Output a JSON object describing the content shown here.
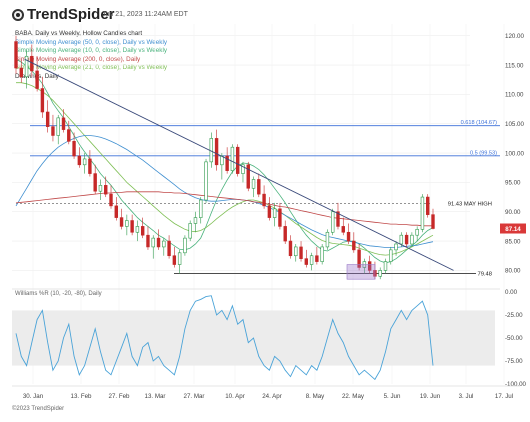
{
  "header": {
    "logo_text": "TrendSpider",
    "timestamp": "Jun 21, 2023 11:24AM EDT"
  },
  "legend": {
    "title": "BABA, Daily vs Weekly, Hollow Candles chart",
    "items": [
      {
        "label": "Simple Moving Average (50, 0, close), Daily vs Weekly",
        "color": "#3f8fd0"
      },
      {
        "label": "Simple Moving Average (10, 0, close), Daily vs Weekly",
        "color": "#49b27c"
      },
      {
        "label": "Simple Moving Average (200, 0, close), Daily",
        "color": "#c04848"
      },
      {
        "label": "Simple Moving Average (21, 0, close), Daily vs Weekly",
        "color": "#7fbf55"
      },
      {
        "label": "Drawings, Daily",
        "color": "#333333"
      }
    ]
  },
  "footer": {
    "copyright": "©2023 TrendSpider"
  },
  "chart_data": {
    "type": "candlestick",
    "symbol": "BABA",
    "x_ticks": [
      "30. Jan",
      "13. Feb",
      "27. Feb",
      "13. Mar",
      "27. Mar",
      "10. Apr",
      "24. Apr",
      "8. May",
      "22. May",
      "5. Jun",
      "19. Jun",
      "3. Jul",
      "17. Jul"
    ],
    "y_ticks": [
      80.0,
      85.0,
      90.0,
      95.0,
      100.0,
      105.0,
      110.0,
      115.0,
      120.0
    ],
    "ylim": [
      77,
      122
    ],
    "last_price_label": "87.14",
    "last_price": 87.14,
    "horizontal_levels": [
      {
        "label": "0.618 (104.67)",
        "value": 104.67,
        "color": "#3a6fd8"
      },
      {
        "label": "0.5 (99.53)",
        "value": 99.53,
        "color": "#3a6fd8"
      },
      {
        "label": "91.43 MAY HIGH",
        "value": 91.43,
        "color": "#333333"
      },
      {
        "label": "79.48",
        "value": 79.48,
        "color": "#333333"
      }
    ],
    "trendline": {
      "from": {
        "date": "2023-01-27",
        "value": 116
      },
      "to": {
        "date": "2023-06-29",
        "value": 80
      }
    },
    "support_box": {
      "from": "2023-05-22",
      "to": "2023-06-01",
      "low": 78.5,
      "high": 81
    },
    "candles": [
      [
        119.0,
        120.0,
        113.5,
        114.5
      ],
      [
        114.5,
        116.0,
        112.0,
        113.0
      ],
      [
        113.0,
        117.5,
        111.0,
        116.5
      ],
      [
        116.5,
        118.5,
        113.0,
        114.0
      ],
      [
        114.0,
        116.5,
        110.5,
        111.0
      ],
      [
        111.0,
        113.0,
        106.0,
        107.0
      ],
      [
        107.0,
        109.0,
        103.5,
        104.5
      ],
      [
        104.5,
        106.5,
        102.0,
        103.0
      ],
      [
        103.0,
        106.5,
        101.5,
        106.0
      ],
      [
        106.0,
        107.5,
        103.5,
        104.0
      ],
      [
        104.0,
        105.5,
        101.5,
        102.0
      ],
      [
        102.0,
        103.5,
        99.0,
        99.5
      ],
      [
        99.5,
        101.0,
        97.5,
        98.0
      ],
      [
        98.0,
        100.0,
        96.5,
        99.0
      ],
      [
        99.0,
        100.5,
        96.0,
        96.5
      ],
      [
        96.5,
        98.0,
        93.0,
        93.5
      ],
      [
        93.5,
        95.5,
        92.0,
        94.5
      ],
      [
        94.5,
        96.0,
        92.5,
        93.0
      ],
      [
        93.0,
        94.5,
        90.5,
        91.0
      ],
      [
        91.0,
        92.5,
        88.5,
        89.0
      ],
      [
        89.0,
        90.5,
        87.0,
        87.5
      ],
      [
        87.5,
        89.5,
        86.0,
        88.5
      ],
      [
        88.5,
        89.5,
        86.0,
        86.5
      ],
      [
        86.5,
        88.5,
        85.0,
        87.5
      ],
      [
        87.5,
        89.0,
        85.5,
        86.0
      ],
      [
        86.0,
        87.5,
        83.5,
        84.0
      ],
      [
        84.0,
        86.0,
        82.0,
        85.5
      ],
      [
        85.5,
        87.0,
        83.5,
        84.0
      ],
      [
        84.0,
        85.5,
        82.5,
        85.0
      ],
      [
        85.0,
        86.0,
        82.0,
        82.5
      ],
      [
        82.5,
        84.0,
        80.5,
        81.0
      ],
      [
        81.0,
        83.5,
        79.5,
        83.0
      ],
      [
        83.0,
        86.0,
        82.5,
        85.5
      ],
      [
        85.5,
        88.5,
        85.0,
        88.0
      ],
      [
        88.0,
        90.0,
        86.5,
        89.0
      ],
      [
        89.0,
        92.5,
        88.0,
        92.0
      ],
      [
        92.0,
        99.0,
        91.5,
        98.5
      ],
      [
        98.5,
        103.5,
        97.5,
        102.5
      ],
      [
        102.5,
        104.0,
        97.0,
        98.0
      ],
      [
        98.0,
        100.0,
        95.5,
        99.5
      ],
      [
        99.5,
        101.0,
        96.5,
        97.0
      ],
      [
        97.0,
        101.5,
        96.5,
        101.0
      ],
      [
        101.0,
        101.5,
        96.0,
        96.5
      ],
      [
        96.5,
        98.5,
        95.0,
        98.0
      ],
      [
        98.0,
        98.5,
        93.5,
        94.0
      ],
      [
        94.0,
        96.0,
        92.5,
        95.5
      ],
      [
        95.5,
        96.5,
        92.5,
        93.0
      ],
      [
        93.0,
        94.5,
        90.5,
        91.0
      ],
      [
        91.0,
        92.5,
        88.5,
        89.0
      ],
      [
        89.0,
        91.5,
        87.5,
        90.5
      ],
      [
        90.5,
        91.5,
        87.0,
        87.5
      ],
      [
        87.5,
        88.5,
        84.5,
        85.0
      ],
      [
        85.0,
        86.0,
        82.0,
        82.5
      ],
      [
        82.5,
        84.5,
        81.5,
        84.0
      ],
      [
        84.0,
        85.0,
        81.5,
        82.0
      ],
      [
        82.0,
        83.5,
        80.5,
        81.0
      ],
      [
        81.0,
        83.0,
        80.0,
        82.5
      ],
      [
        82.5,
        84.0,
        81.0,
        81.5
      ],
      [
        81.5,
        84.5,
        81.0,
        84.0
      ],
      [
        84.0,
        87.0,
        83.5,
        86.5
      ],
      [
        86.5,
        90.5,
        86.0,
        90.0
      ],
      [
        90.0,
        91.5,
        87.0,
        87.5
      ],
      [
        87.5,
        89.0,
        86.0,
        86.5
      ],
      [
        86.5,
        88.0,
        84.5,
        85.0
      ],
      [
        85.0,
        86.5,
        83.0,
        83.5
      ],
      [
        83.5,
        84.5,
        80.0,
        80.5
      ],
      [
        80.5,
        82.0,
        79.5,
        81.5
      ],
      [
        81.5,
        82.5,
        79.5,
        80.0
      ],
      [
        80.0,
        81.5,
        78.5,
        79.0
      ],
      [
        79.0,
        80.5,
        78.5,
        80.0
      ],
      [
        80.0,
        82.0,
        79.5,
        81.5
      ],
      [
        81.5,
        84.0,
        81.0,
        83.5
      ],
      [
        83.5,
        85.0,
        82.5,
        84.5
      ],
      [
        84.5,
        86.5,
        84.0,
        86.0
      ],
      [
        86.0,
        86.5,
        84.0,
        84.5
      ],
      [
        84.5,
        86.5,
        84.0,
        86.0
      ],
      [
        86.0,
        87.5,
        85.0,
        87.0
      ],
      [
        87.0,
        93.0,
        86.5,
        92.5
      ],
      [
        92.5,
        93.0,
        89.0,
        89.5
      ],
      [
        89.5,
        90.5,
        87.0,
        87.14
      ]
    ],
    "sma_lines": [
      {
        "name": "Simple Moving Average (10, 0, close), Daily vs Weekly",
        "color": "#49b27c",
        "values": [
          116,
          115.5,
          114.8,
          114,
          113,
          111.8,
          110.2,
          108.5,
          107.2,
          106,
          104.5,
          103,
          101.5,
          100.2,
          99,
          97.8,
          96.5,
          95.5,
          94.5,
          93.3,
          92,
          91,
          90,
          89,
          88.2,
          87.5,
          86.8,
          86,
          85.5,
          84.8,
          84.2,
          83.6,
          83.5,
          83.8,
          84.5,
          85.5,
          87.5,
          89.8,
          92,
          93.8,
          95.4,
          96.8,
          97.8,
          98.3,
          98.2,
          97.8,
          97.2,
          96.3,
          95.2,
          94,
          92.8,
          91.5,
          90,
          88.6,
          87.2,
          86,
          85,
          84.2,
          83.5,
          83.3,
          83.8,
          84.3,
          84.8,
          85,
          85,
          84.5,
          83.8,
          83,
          82.2,
          81.6,
          81.3,
          81.5,
          82,
          82.7,
          83.5,
          84.2,
          85,
          86,
          86.8,
          87.3
        ]
      },
      {
        "name": "Simple Moving Average (21, 0, close), Daily vs Weekly",
        "color": "#7fbf55",
        "values": [
          112,
          112,
          111.8,
          111.5,
          111,
          110.5,
          109.8,
          109,
          108,
          107,
          106,
          105,
          104,
          103,
          102,
          101,
          100,
          99,
          98,
          97,
          96,
          95,
          94.2,
          93.4,
          92.6,
          91.8,
          91,
          90.2,
          89.4,
          88.7,
          88,
          87.5,
          87,
          86.7,
          86.6,
          86.8,
          87.3,
          88,
          88.8,
          89.5,
          90.2,
          90.8,
          91.3,
          91.7,
          92,
          92,
          91.8,
          91.5,
          91.1,
          90.6,
          90,
          89.4,
          88.7,
          88,
          87.4,
          86.8,
          86.2,
          85.6,
          85.1,
          84.8,
          84.6,
          84.5,
          84.4,
          84.3,
          84.1,
          83.8,
          83.5,
          83.2,
          82.9,
          82.7,
          82.6,
          82.7,
          82.9,
          83.2,
          83.6,
          84,
          84.5,
          85,
          85.5,
          86
        ]
      },
      {
        "name": "Simple Moving Average (50, 0, close), Daily vs Weekly",
        "color": "#3f8fd0",
        "values": [
          91,
          92.5,
          94,
          95.5,
          97,
          98.2,
          99.3,
          100.2,
          101,
          101.6,
          102.1,
          102.5,
          102.8,
          103,
          103,
          102.9,
          102.7,
          102.4,
          102,
          101.6,
          101.1,
          100.6,
          100,
          99.4,
          98.8,
          98.1,
          97.4,
          96.7,
          96,
          95.3,
          94.6,
          93.9,
          93.3,
          92.8,
          92.4,
          92.1,
          91.9,
          91.8,
          91.8,
          91.9,
          92,
          92.1,
          92.1,
          92,
          91.9,
          91.7,
          91.4,
          91.1,
          90.7,
          90.3,
          89.9,
          89.4,
          88.9,
          88.4,
          87.9,
          87.4,
          86.9,
          86.5,
          86.1,
          85.8,
          85.6,
          85.4,
          85.2,
          85,
          84.8,
          84.6,
          84.4,
          84.2,
          84.1,
          84,
          83.9,
          83.9,
          83.9,
          84,
          84.1,
          84.2,
          84.3,
          84.5,
          84.7,
          84.9
        ]
      },
      {
        "name": "Simple Moving Average (200, 0, close), Daily",
        "color": "#c04848",
        "values": [
          91.5,
          91.6,
          91.7,
          91.8,
          91.9,
          92,
          92.1,
          92.2,
          92.3,
          92.4,
          92.5,
          92.6,
          92.7,
          92.8,
          92.9,
          93,
          93.1,
          93.2,
          93.2,
          93.3,
          93.3,
          93.4,
          93.4,
          93.4,
          93.4,
          93.4,
          93.4,
          93.4,
          93.3,
          93.3,
          93.2,
          93.2,
          93.1,
          93,
          92.9,
          92.8,
          92.7,
          92.6,
          92.5,
          92.4,
          92.3,
          92.2,
          92.1,
          92,
          91.9,
          91.7,
          91.6,
          91.4,
          91.3,
          91.1,
          90.9,
          90.8,
          90.6,
          90.4,
          90.2,
          90,
          89.8,
          89.6,
          89.4,
          89.2,
          89,
          88.9,
          88.8,
          88.7,
          88.6,
          88.5,
          88.4,
          88.3,
          88.2,
          88.1,
          88,
          87.9,
          87.9,
          87.8,
          87.8,
          87.7,
          87.7,
          87.6,
          87.6,
          87.6
        ]
      }
    ],
    "williams_r": {
      "label": "Williams %R (10, -20, -80), Daily",
      "y_ticks": [
        0.0,
        -25.0,
        -50.0,
        -75.0,
        -100.0
      ],
      "ylim": [
        -100,
        0
      ],
      "band": [
        -80,
        -20
      ],
      "values": [
        -45,
        -70,
        -80,
        -55,
        -30,
        -20,
        -55,
        -85,
        -75,
        -50,
        -35,
        -70,
        -90,
        -80,
        -60,
        -40,
        -65,
        -85,
        -90,
        -75,
        -60,
        -45,
        -70,
        -80,
        -60,
        -55,
        -75,
        -70,
        -80,
        -85,
        -90,
        -70,
        -40,
        -20,
        -10,
        -8,
        -5,
        -4,
        -25,
        -20,
        -30,
        -15,
        -35,
        -30,
        -55,
        -50,
        -70,
        -80,
        -85,
        -70,
        -75,
        -85,
        -92,
        -80,
        -85,
        -90,
        -80,
        -85,
        -70,
        -50,
        -30,
        -45,
        -55,
        -70,
        -80,
        -90,
        -85,
        -90,
        -95,
        -85,
        -65,
        -40,
        -30,
        -20,
        -30,
        -20,
        -15,
        -10,
        -25,
        -80
      ]
    }
  }
}
